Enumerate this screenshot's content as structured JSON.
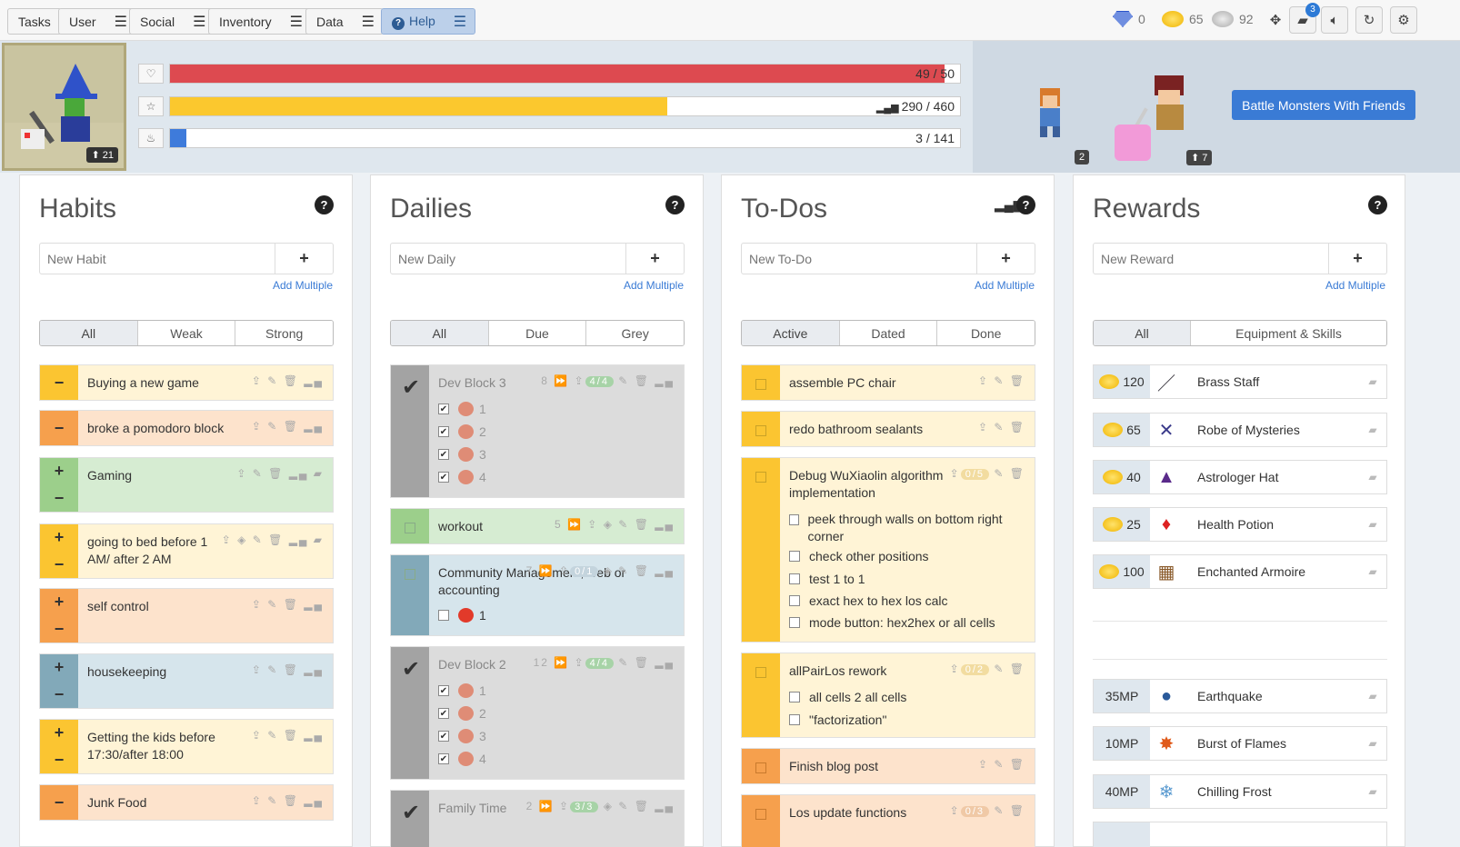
{
  "nav": {
    "tasks": "Tasks",
    "user": "User",
    "social": "Social",
    "inventory": "Inventory",
    "data": "Data",
    "help": "Help",
    "gems": "0",
    "gold": "65",
    "silver": "92",
    "notifications": "3"
  },
  "stats": {
    "health": "49 / 50",
    "health_fraction": 0.98,
    "experience": "290 / 460",
    "experience_fraction": 0.63,
    "mana": "3 / 141",
    "mana_fraction": 0.021,
    "level": "21"
  },
  "party": {
    "member1_level": "2",
    "member2_level": "7",
    "battle_button": "Battle Monsters With Friends"
  },
  "habits": {
    "title": "Habits",
    "placeholder": "New Habit",
    "add_multiple": "Add Multiple",
    "filters": [
      "All",
      "Weak",
      "Strong"
    ],
    "items": [
      {
        "title": "Buying a new game",
        "minus": "−"
      },
      {
        "title": "broke a pomodoro block",
        "minus": "−"
      },
      {
        "title": "Gaming",
        "plus": "+",
        "minus": "−"
      },
      {
        "title": "going to bed before 1 AM/ after 2 AM",
        "plus": "+",
        "minus": "−"
      },
      {
        "title": "self control",
        "plus": "+",
        "minus": "−"
      },
      {
        "title": "housekeeping",
        "plus": "+",
        "minus": "−"
      },
      {
        "title": "Getting the kids before 17:30/after 18:00",
        "plus": "+",
        "minus": "−"
      },
      {
        "title": "Junk Food",
        "minus": "−"
      }
    ]
  },
  "dailies": {
    "title": "Dailies",
    "placeholder": "New Daily",
    "add_multiple": "Add Multiple",
    "filters": [
      "All",
      "Due",
      "Grey"
    ],
    "items": [
      {
        "title": "Dev Block 3",
        "streak": "8",
        "pill": "4/4",
        "subs": [
          "1",
          "2",
          "3",
          "4"
        ]
      },
      {
        "title": "workout",
        "streak": "5"
      },
      {
        "title": "Community Management, web or accounting",
        "streak": "7",
        "pill": "0/1",
        "subs": [
          "1"
        ]
      },
      {
        "title": "Dev Block 2",
        "streak": "12",
        "pill": "4/4",
        "subs": [
          "1",
          "2",
          "3",
          "4"
        ]
      },
      {
        "title": "Family Time",
        "streak": "2",
        "pill": "3/3"
      }
    ]
  },
  "todos": {
    "title": "To-Dos",
    "placeholder": "New To-Do",
    "add_multiple": "Add Multiple",
    "filters": [
      "Active",
      "Dated",
      "Done"
    ],
    "items": [
      {
        "title": "assemble PC chair"
      },
      {
        "title": "redo bathroom sealants"
      },
      {
        "title": "Debug WuXiaolin algorithm implementation",
        "pill": "0/5",
        "subs": [
          "peek through walls on bottom right corner",
          "check other positions",
          "test 1 to 1",
          "exact hex to hex los calc",
          "mode button: hex2hex or all cells"
        ]
      },
      {
        "title": "allPairLos rework",
        "pill": "0/2",
        "subs": [
          "all cells 2 all cells",
          "\"factorization\""
        ]
      },
      {
        "title": "Finish blog post"
      },
      {
        "title": "Los update functions",
        "pill": "0/3"
      }
    ]
  },
  "rewards": {
    "title": "Rewards",
    "placeholder": "New Reward",
    "add_multiple": "Add Multiple",
    "filters": [
      "All",
      "Equipment & Skills"
    ],
    "items": [
      {
        "cost": "120",
        "name": "Brass Staff"
      },
      {
        "cost": "65",
        "name": "Robe of Mysteries"
      },
      {
        "cost": "40",
        "name": "Astrologer Hat"
      },
      {
        "cost": "25",
        "name": "Health Potion"
      },
      {
        "cost": "100",
        "name": "Enchanted Armoire"
      }
    ],
    "skills": [
      {
        "cost": "35MP",
        "name": "Earthquake"
      },
      {
        "cost": "10MP",
        "name": "Burst of Flames"
      },
      {
        "cost": "40MP",
        "name": "Chilling Frost"
      }
    ]
  }
}
